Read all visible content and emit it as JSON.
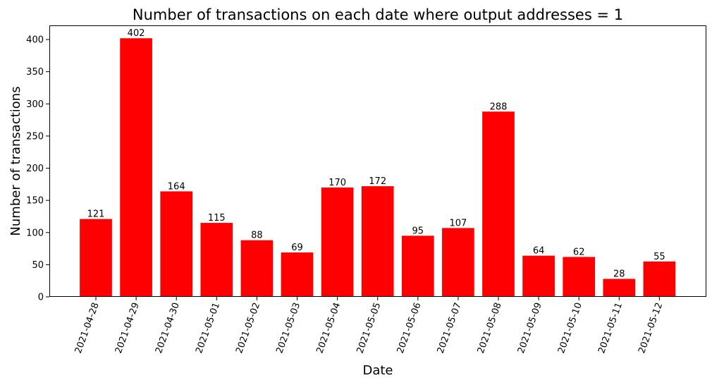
{
  "chart_data": {
    "type": "bar",
    "title": "Number of transactions on each date where output addresses = 1",
    "xlabel": "Date",
    "ylabel": "Number of transactions",
    "categories": [
      "2021-04-28",
      "2021-04-29",
      "2021-04-30",
      "2021-05-01",
      "2021-05-02",
      "2021-05-03",
      "2021-05-04",
      "2021-05-05",
      "2021-05-06",
      "2021-05-07",
      "2021-05-08",
      "2021-05-09",
      "2021-05-10",
      "2021-05-11",
      "2021-05-12"
    ],
    "values": [
      121,
      402,
      164,
      115,
      88,
      69,
      170,
      172,
      95,
      107,
      288,
      64,
      62,
      28,
      55
    ],
    "ylim": [
      0,
      422
    ],
    "yticks": [
      0,
      50,
      100,
      150,
      200,
      250,
      300,
      350,
      400
    ],
    "bar_color": "#ff0000",
    "grid": false,
    "data_labels": true,
    "xtick_rotation_deg": 70
  }
}
